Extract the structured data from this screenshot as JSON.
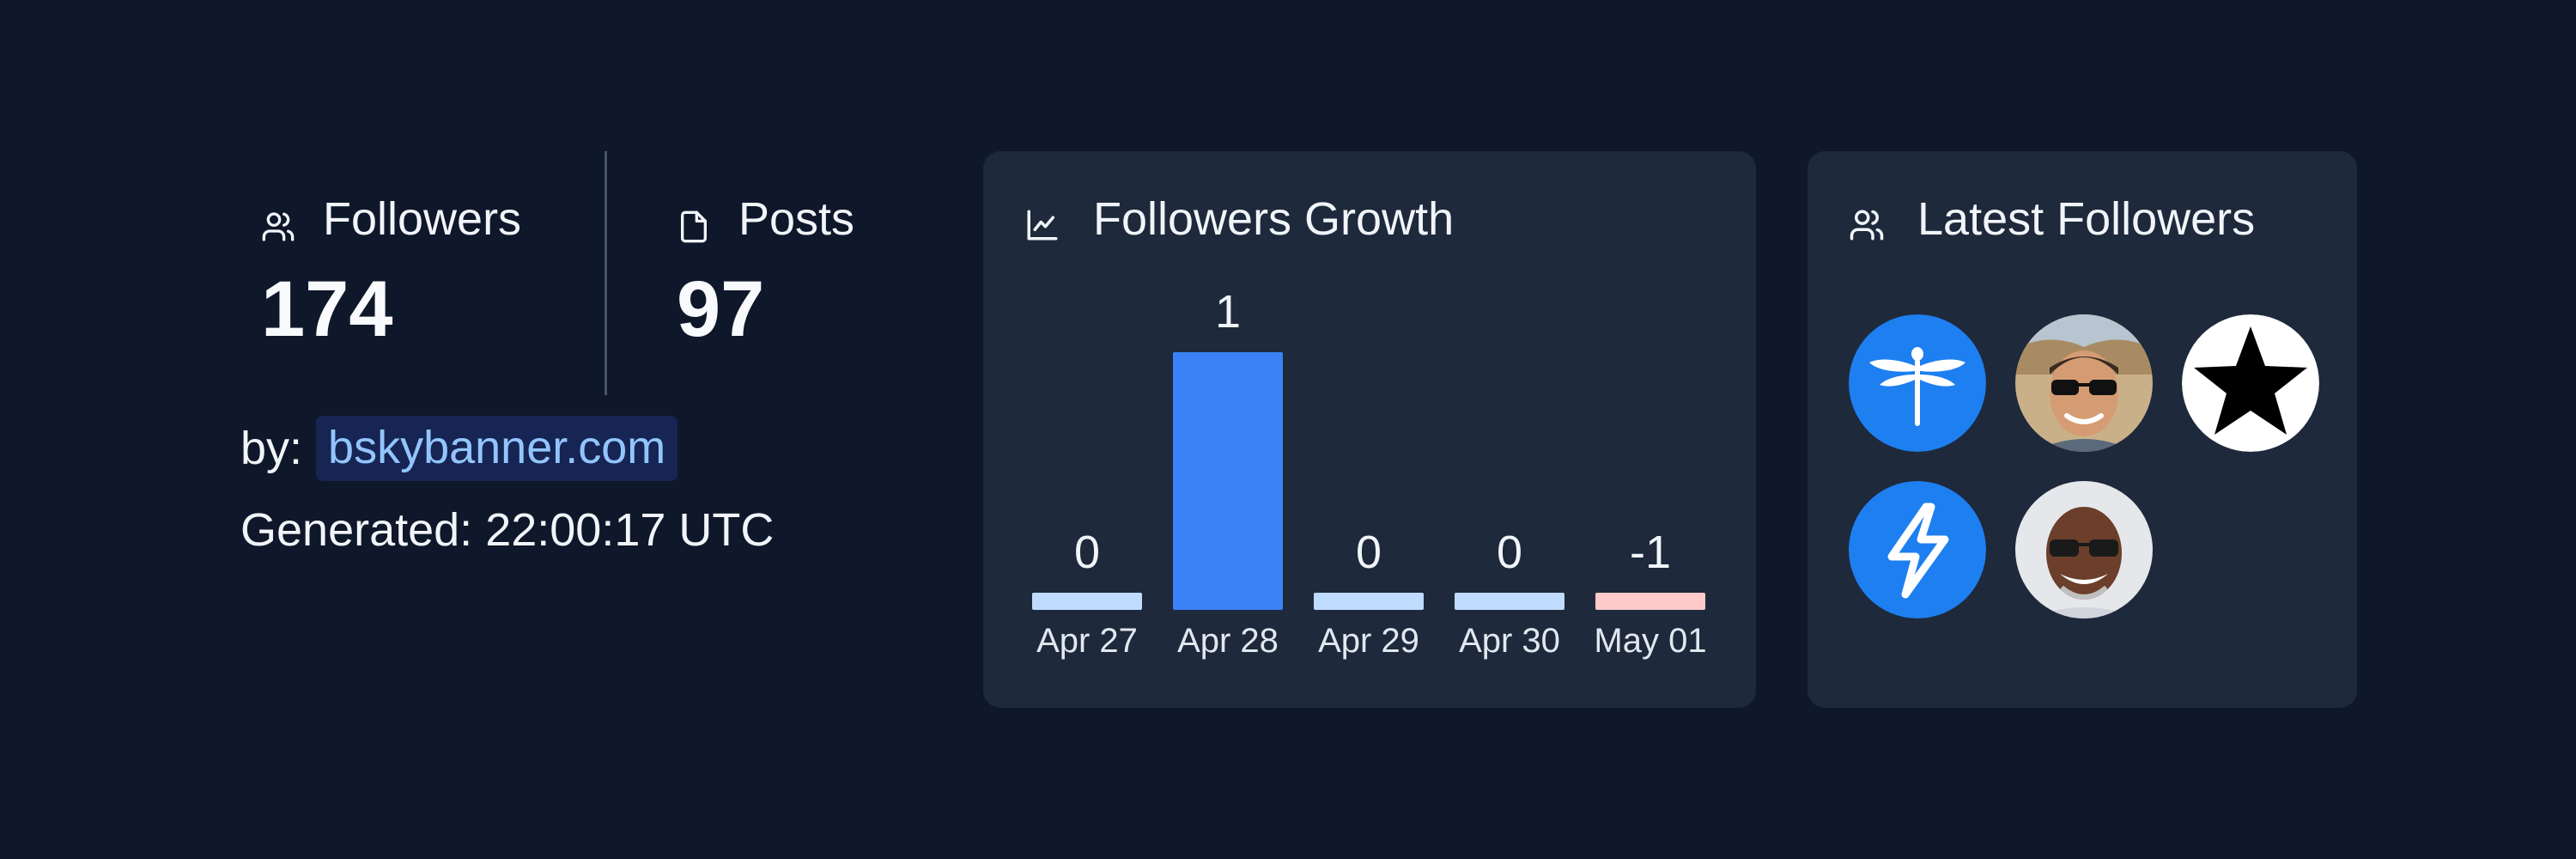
{
  "stats": {
    "followers": {
      "label": "Followers",
      "value": "174",
      "icon": "users-icon"
    },
    "posts": {
      "label": "Posts",
      "value": "97",
      "icon": "file-icon"
    }
  },
  "attribution": {
    "by_label": "by:",
    "link_text": "bskybanner.com"
  },
  "generated": "Generated: 22:00:17 UTC",
  "growth": {
    "title": "Followers Growth",
    "icon": "line-chart-icon"
  },
  "chart_data": {
    "type": "bar",
    "title": "Followers Growth",
    "categories": [
      "Apr 27",
      "Apr 28",
      "Apr 29",
      "Apr 30",
      "May 01"
    ],
    "values": [
      0,
      1,
      0,
      0,
      -1
    ],
    "data_labels": [
      "0",
      "1",
      "0",
      "0",
      "-1"
    ],
    "xlabel": "",
    "ylabel": "",
    "colors": {
      "positive": "#3b82f6",
      "zero": "#bfdbfe",
      "negative": "#fecaca"
    }
  },
  "latest_followers": {
    "title": "Latest Followers",
    "icon": "users-icon",
    "avatars": [
      {
        "kind": "dragonfly-icon",
        "color": "#1d7ff0"
      },
      {
        "kind": "person-photo-sunglasses",
        "color": "#c9b089"
      },
      {
        "kind": "star-icon",
        "color": "#ffffff"
      },
      {
        "kind": "lightning-icon",
        "color": "#1d7ff0"
      },
      {
        "kind": "person-photo-smiling",
        "color": "#e5e7eb"
      }
    ]
  }
}
